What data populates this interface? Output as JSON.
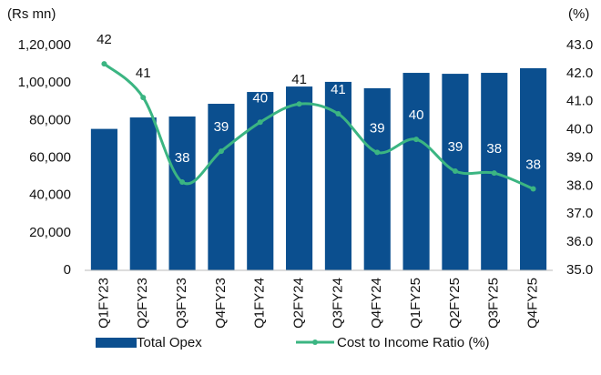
{
  "chart_data": {
    "type": "bar",
    "y_label": "(Rs mn)",
    "y2_label": "(%)",
    "categories": [
      "Q1FY23",
      "Q2FY23",
      "Q3FY23",
      "Q4FY23",
      "Q1FY24",
      "Q2FY24",
      "Q3FY24",
      "Q4FY24",
      "Q1FY25",
      "Q2FY25",
      "Q3FY25",
      "Q4FY25"
    ],
    "series": [
      {
        "name": "Total Opex",
        "type": "bar",
        "color": "#0b4f8f",
        "values": [
          75500,
          81600,
          82100,
          88900,
          95200,
          98100,
          100600,
          97200,
          105400,
          104900,
          105400,
          107900
        ]
      },
      {
        "name": "Cost to Income Ratio (%)",
        "type": "line",
        "axis": "y2",
        "color": "#3bb582",
        "values": [
          42.35,
          41.15,
          38.14,
          39.24,
          40.27,
          40.92,
          40.57,
          39.2,
          39.66,
          38.53,
          38.46,
          37.9
        ],
        "value_labels": [
          "42",
          "41",
          "38",
          "39",
          "40",
          "41",
          "41",
          "39",
          "40",
          "39",
          "38",
          "38"
        ]
      }
    ],
    "ylim": [
      0,
      120000
    ],
    "yticks": [
      0,
      {
        "value": 20000,
        "label": "20,000"
      },
      {
        "value": 40000,
        "label": "40,000"
      },
      {
        "value": 60000,
        "label": "60,000"
      },
      {
        "value": 80000,
        "label": "80,000"
      },
      {
        "value": 100000,
        "label": "1,00,000"
      },
      {
        "value": 120000,
        "label": "1,20,000"
      }
    ],
    "y2lim": [
      35,
      43
    ],
    "y2ticks": [
      {
        "value": 35,
        "label": "35.0"
      },
      {
        "value": 36,
        "label": "36.0"
      },
      {
        "value": 37,
        "label": "37.0"
      },
      {
        "value": 38,
        "label": "38.0"
      },
      {
        "value": 39,
        "label": "39.0"
      },
      {
        "value": 40,
        "label": "40.0"
      },
      {
        "value": 41,
        "label": "41.0"
      },
      {
        "value": 42,
        "label": "42.0"
      },
      {
        "value": 43,
        "label": "43.0"
      }
    ],
    "legend": "bottom"
  }
}
